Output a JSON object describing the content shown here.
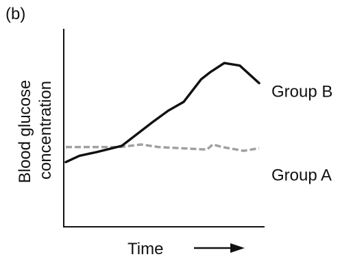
{
  "chart_data": {
    "type": "line",
    "panel_label": "(b)",
    "xlabel": "Time",
    "ylabel_lines": [
      "Blood glucose",
      "concentration"
    ],
    "x_arrow": "rightward",
    "ticks_shown": false,
    "grid": false,
    "xlim": [
      0,
      10
    ],
    "ylim": [
      0,
      10
    ],
    "series": [
      {
        "name": "Group B",
        "style": "solid",
        "color": "#111111",
        "x": [
          0.0,
          0.7,
          1.6,
          2.9,
          4.5,
          5.3,
          6.1,
          7.0,
          7.5,
          8.2,
          9.0,
          10.0
        ],
        "y": [
          2.1,
          2.6,
          2.9,
          3.4,
          5.3,
          6.2,
          6.9,
          8.7,
          9.3,
          10.0,
          9.8,
          8.4
        ]
      },
      {
        "name": "Group A",
        "style": "dashed",
        "color": "#a0a0a0",
        "x": [
          0.0,
          2.8,
          3.9,
          4.8,
          7.3,
          7.6,
          8.1,
          9.2,
          10.0
        ],
        "y": [
          3.3,
          3.3,
          3.5,
          3.3,
          3.1,
          3.5,
          3.3,
          3.0,
          3.2
        ]
      }
    ],
    "legend_position": "right, labels at line ends"
  }
}
